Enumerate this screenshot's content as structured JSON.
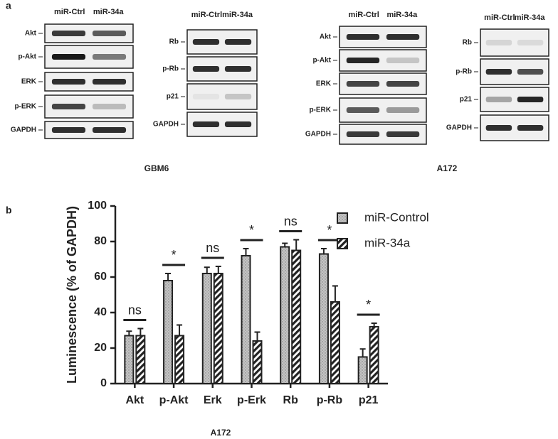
{
  "panel_a": {
    "label": "a",
    "blots": [
      {
        "lanes": [
          "miR-Ctrl",
          "miR-34a"
        ],
        "rows": [
          "Akt",
          "p-Akt",
          "ERK",
          "p-ERK",
          "GAPDH"
        ]
      },
      {
        "lanes": [
          "miR-Ctrl",
          "miR-34a"
        ],
        "rows": [
          "Rb",
          "p-Rb",
          "p21",
          "GAPDH"
        ]
      },
      {
        "lanes": [
          "miR-Ctrl",
          "miR-34a"
        ],
        "rows": [
          "Akt",
          "p-Akt",
          "ERK",
          "p-ERK",
          "GAPDH"
        ]
      },
      {
        "lanes": [
          "miR-Ctrl",
          "miR-34a"
        ],
        "rows": [
          "Rb",
          "p-Rb",
          "p21",
          "GAPDH"
        ]
      }
    ],
    "groups": [
      "GBM6",
      "A172"
    ]
  },
  "chart_data": {
    "type": "bar",
    "panel_label": "b",
    "ylabel": "Luminescence (% of GAPDH)",
    "xlabel": "A172",
    "categories": [
      "Akt",
      "p-Akt",
      "Erk",
      "p-Erk",
      "Rb",
      "p-Rb",
      "p21"
    ],
    "series": [
      {
        "name": "miR-Control",
        "color": "#b8b8b8",
        "pattern": "dots",
        "values": [
          27,
          58,
          62,
          72,
          77,
          73,
          15
        ],
        "errors": [
          2.5,
          4,
          3.5,
          4,
          2,
          3,
          4.5
        ]
      },
      {
        "name": "miR-34a",
        "color": "#2a2a2a",
        "pattern": "hatch",
        "values": [
          27,
          27,
          62,
          24,
          75,
          46,
          32
        ],
        "errors": [
          4,
          6,
          4,
          5,
          6,
          9,
          2
        ]
      }
    ],
    "significance": [
      "ns",
      "*",
      "ns",
      "*",
      "ns",
      "*",
      "*"
    ],
    "ylim": [
      0,
      100
    ],
    "yticks": [
      0,
      20,
      40,
      60,
      80,
      100
    ],
    "legend": "upper right"
  }
}
